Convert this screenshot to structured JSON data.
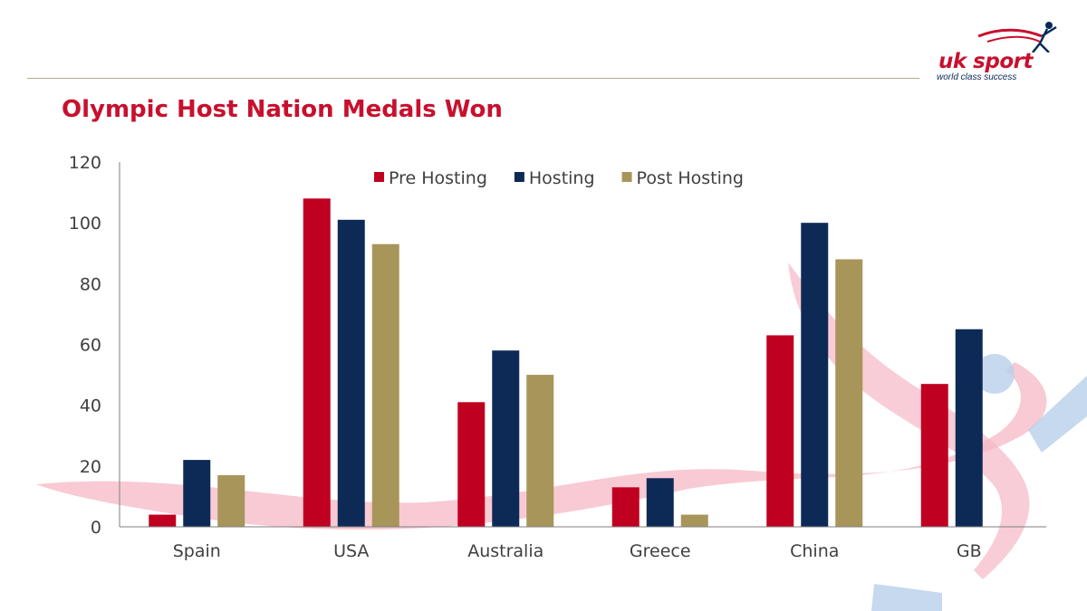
{
  "slide": {
    "title": "Olympic Host Nation Medals Won",
    "brand": {
      "name": "uk sport",
      "tagline": "world class success"
    }
  },
  "colors": {
    "title": "#c8102e",
    "pre_hosting": "#c00020",
    "hosting": "#0d2a57",
    "post_hosting": "#a8955a",
    "swoosh_pink": "#f5b8c6",
    "swoosh_blue": "#b8d0ea"
  },
  "chart_data": {
    "type": "bar",
    "categories": [
      "Spain",
      "USA",
      "Australia",
      "Greece",
      "China",
      "GB"
    ],
    "series": [
      {
        "name": "Pre Hosting",
        "values": [
          4,
          108,
          41,
          13,
          63,
          47
        ]
      },
      {
        "name": "Hosting",
        "values": [
          22,
          101,
          58,
          16,
          100,
          65
        ]
      },
      {
        "name": "Post Hosting",
        "values": [
          17,
          93,
          50,
          4,
          88,
          null
        ]
      }
    ],
    "title": "Olympic Host Nation Medals Won",
    "xlabel": "",
    "ylabel": "",
    "ylim": [
      0,
      120
    ],
    "yticks": [
      0,
      20,
      40,
      60,
      80,
      100,
      120
    ],
    "grid": false,
    "legend": "top-center"
  }
}
